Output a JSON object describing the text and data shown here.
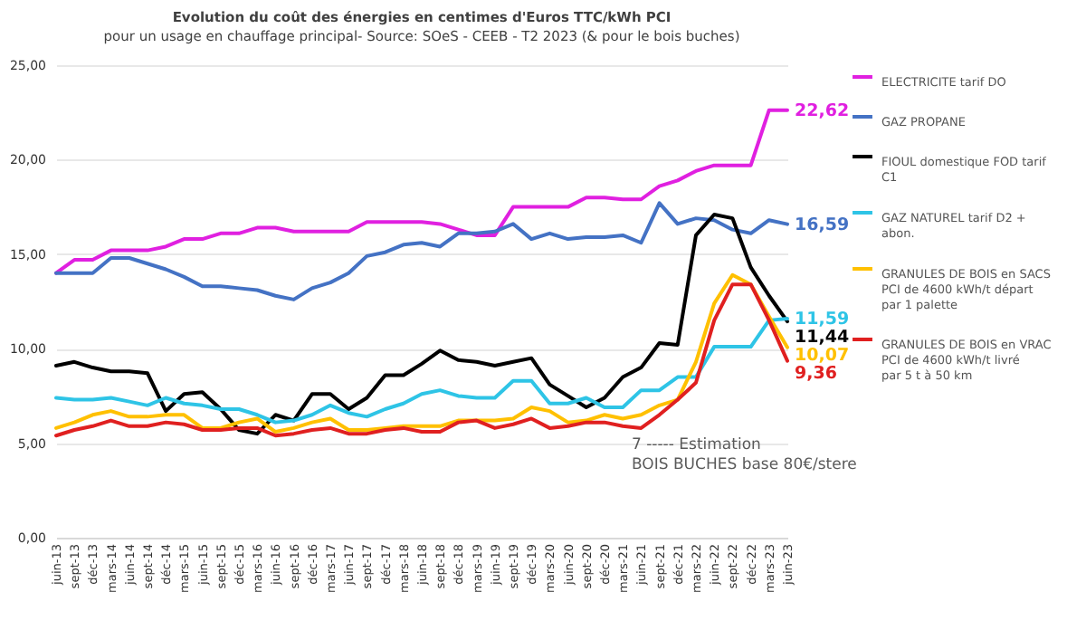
{
  "chart_data": {
    "type": "line",
    "title": "Evolution du coût des énergies en centimes d'Euros TTC/kWh PCI",
    "subtitle": "pour un usage en chauffage principal- Source: SOeS - CEEB - T2 2023 (& pour le bois buches)",
    "categories": [
      "juin-13",
      "sept-13",
      "déc-13",
      "mars-14",
      "juin-14",
      "sept-14",
      "déc-14",
      "mars-15",
      "juin-15",
      "sept-15",
      "déc-15",
      "mars-16",
      "juin-16",
      "sept-16",
      "déc-16",
      "mars-17",
      "juin-17",
      "sept-17",
      "déc-17",
      "mars-18",
      "juin-18",
      "sept-18",
      "déc-18",
      "mars-19",
      "juin-19",
      "sept-19",
      "déc-19",
      "mars-20",
      "juin-20",
      "sept-20",
      "déc-20",
      "mars-21",
      "juin-21",
      "sept-21",
      "déc-21",
      "mars-22",
      "juin-22",
      "sept-22",
      "déc-22",
      "mars-23",
      "juin-23"
    ],
    "series": [
      {
        "name": "ELECTRICITE tarif DO",
        "color": "#e020e0",
        "value_labels": [
          null,
          null,
          null,
          null,
          null,
          null,
          null,
          null,
          null,
          null,
          null,
          null,
          null,
          null,
          null,
          null,
          null,
          null,
          null,
          null,
          null,
          null,
          null,
          null,
          null,
          null,
          null,
          null,
          null,
          null,
          null,
          null,
          null,
          null,
          null,
          null,
          null,
          null,
          null,
          null,
          "22,62"
        ],
        "values": [
          14.0,
          14.7,
          14.7,
          15.2,
          15.2,
          15.2,
          15.4,
          15.8,
          15.8,
          16.1,
          16.1,
          16.4,
          16.4,
          16.2,
          16.2,
          16.2,
          16.2,
          16.7,
          16.7,
          16.7,
          16.7,
          16.6,
          16.3,
          16.0,
          16.0,
          17.5,
          17.5,
          17.5,
          17.5,
          18.0,
          18.0,
          17.9,
          17.9,
          18.6,
          18.9,
          19.4,
          19.7,
          19.7,
          19.7,
          22.62,
          22.62
        ]
      },
      {
        "name": "GAZ PROPANE",
        "color": "#4472c4",
        "value_labels": [
          null,
          null,
          null,
          null,
          null,
          null,
          null,
          null,
          null,
          null,
          null,
          null,
          null,
          null,
          null,
          null,
          null,
          null,
          null,
          null,
          null,
          null,
          null,
          null,
          null,
          null,
          null,
          null,
          null,
          null,
          null,
          null,
          null,
          null,
          null,
          null,
          null,
          null,
          null,
          null,
          "16,59"
        ],
        "values": [
          14.0,
          14.0,
          14.0,
          14.8,
          14.8,
          14.5,
          14.2,
          13.8,
          13.3,
          13.3,
          13.2,
          13.1,
          12.8,
          12.6,
          13.2,
          13.5,
          14.0,
          14.9,
          15.1,
          15.5,
          15.6,
          15.4,
          16.1,
          16.1,
          16.2,
          16.6,
          15.8,
          16.1,
          15.8,
          15.9,
          15.9,
          16.0,
          15.6,
          17.7,
          16.6,
          16.9,
          16.8,
          16.3,
          16.1,
          16.8,
          16.59
        ]
      },
      {
        "name": "FIOUL domestique FOD tarif C1",
        "color": "#000000",
        "value_labels": [
          null,
          null,
          null,
          null,
          null,
          null,
          null,
          null,
          null,
          null,
          null,
          null,
          null,
          null,
          null,
          null,
          null,
          null,
          null,
          null,
          null,
          null,
          null,
          null,
          null,
          null,
          null,
          null,
          null,
          null,
          null,
          null,
          null,
          null,
          null,
          null,
          null,
          null,
          null,
          null,
          "11,44"
        ],
        "values": [
          9.1,
          9.3,
          9.0,
          8.8,
          8.8,
          8.7,
          6.7,
          7.6,
          7.7,
          6.8,
          5.7,
          5.5,
          6.5,
          6.2,
          7.6,
          7.6,
          6.8,
          7.4,
          8.6,
          8.6,
          9.2,
          9.9,
          9.4,
          9.3,
          9.1,
          9.3,
          9.5,
          8.1,
          7.5,
          6.9,
          7.4,
          8.5,
          9.0,
          10.3,
          10.2,
          16.0,
          17.1,
          16.9,
          14.3,
          12.8,
          11.44
        ]
      },
      {
        "name": "GAZ NATUREL tarif D2 + abon.",
        "color": "#2ec4e6",
        "value_labels": [
          null,
          null,
          null,
          null,
          null,
          null,
          null,
          null,
          null,
          null,
          null,
          null,
          null,
          null,
          null,
          null,
          null,
          null,
          null,
          null,
          null,
          null,
          null,
          null,
          null,
          null,
          null,
          null,
          null,
          null,
          null,
          null,
          null,
          null,
          null,
          null,
          null,
          null,
          null,
          null,
          "11,59"
        ],
        "values": [
          7.4,
          7.3,
          7.3,
          7.4,
          7.2,
          7.0,
          7.4,
          7.1,
          7.0,
          6.8,
          6.8,
          6.5,
          6.1,
          6.2,
          6.5,
          7.0,
          6.6,
          6.4,
          6.8,
          7.1,
          7.6,
          7.8,
          7.5,
          7.4,
          7.4,
          8.3,
          8.3,
          7.1,
          7.1,
          7.4,
          6.9,
          6.9,
          7.8,
          7.8,
          8.5,
          8.5,
          10.1,
          10.1,
          10.1,
          11.5,
          11.59
        ]
      },
      {
        "name": "GRANULES DE BOIS en SACS PCI de 4600 kWh/t départ par 1 palette",
        "color": "#ffc000",
        "value_labels": [
          null,
          null,
          null,
          null,
          null,
          null,
          null,
          null,
          null,
          null,
          null,
          null,
          null,
          null,
          null,
          null,
          null,
          null,
          null,
          null,
          null,
          null,
          null,
          null,
          null,
          null,
          null,
          null,
          null,
          null,
          null,
          null,
          null,
          null,
          null,
          null,
          null,
          null,
          null,
          null,
          "10,07"
        ],
        "values": [
          5.8,
          6.1,
          6.5,
          6.7,
          6.4,
          6.4,
          6.5,
          6.5,
          5.8,
          5.8,
          6.1,
          6.3,
          5.6,
          5.8,
          6.1,
          6.3,
          5.7,
          5.7,
          5.8,
          5.9,
          5.9,
          5.9,
          6.2,
          6.2,
          6.2,
          6.3,
          6.9,
          6.7,
          6.1,
          6.2,
          6.5,
          6.3,
          6.5,
          7.0,
          7.3,
          9.3,
          12.4,
          13.9,
          13.4,
          11.7,
          10.07
        ]
      },
      {
        "name": "GRANULES DE BOIS en VRAC PCI de 4600 kWh/t livré par 5 t à 50 km",
        "color": "#e02020",
        "value_labels": [
          null,
          null,
          null,
          null,
          null,
          null,
          null,
          null,
          null,
          null,
          null,
          null,
          null,
          null,
          null,
          null,
          null,
          null,
          null,
          null,
          null,
          null,
          null,
          null,
          null,
          null,
          null,
          null,
          null,
          null,
          null,
          null,
          null,
          null,
          null,
          null,
          null,
          null,
          null,
          null,
          "9,36"
        ],
        "values": [
          5.4,
          5.7,
          5.9,
          6.2,
          5.9,
          5.9,
          6.1,
          6.0,
          5.7,
          5.7,
          5.8,
          5.8,
          5.4,
          5.5,
          5.7,
          5.8,
          5.5,
          5.5,
          5.7,
          5.8,
          5.6,
          5.6,
          6.1,
          6.2,
          5.8,
          6.0,
          6.3,
          5.8,
          5.9,
          6.1,
          6.1,
          5.9,
          5.8,
          6.5,
          7.3,
          8.2,
          11.5,
          13.4,
          13.4,
          11.5,
          9.36
        ]
      }
    ],
    "ylim": [
      0,
      25
    ],
    "yticks": [
      {
        "value": 0,
        "label": "0,00"
      },
      {
        "value": 5,
        "label": "5,00"
      },
      {
        "value": 10,
        "label": "10,00"
      },
      {
        "value": 15,
        "label": "15,00"
      },
      {
        "value": 20,
        "label": "20,00"
      },
      {
        "value": 25,
        "label": "25,00"
      }
    ],
    "grid": "y",
    "legend": "right",
    "marker": "none",
    "annotations": [
      "7 ----- Estimation",
      "BOIS BUCHES  base 80€/stere"
    ]
  }
}
